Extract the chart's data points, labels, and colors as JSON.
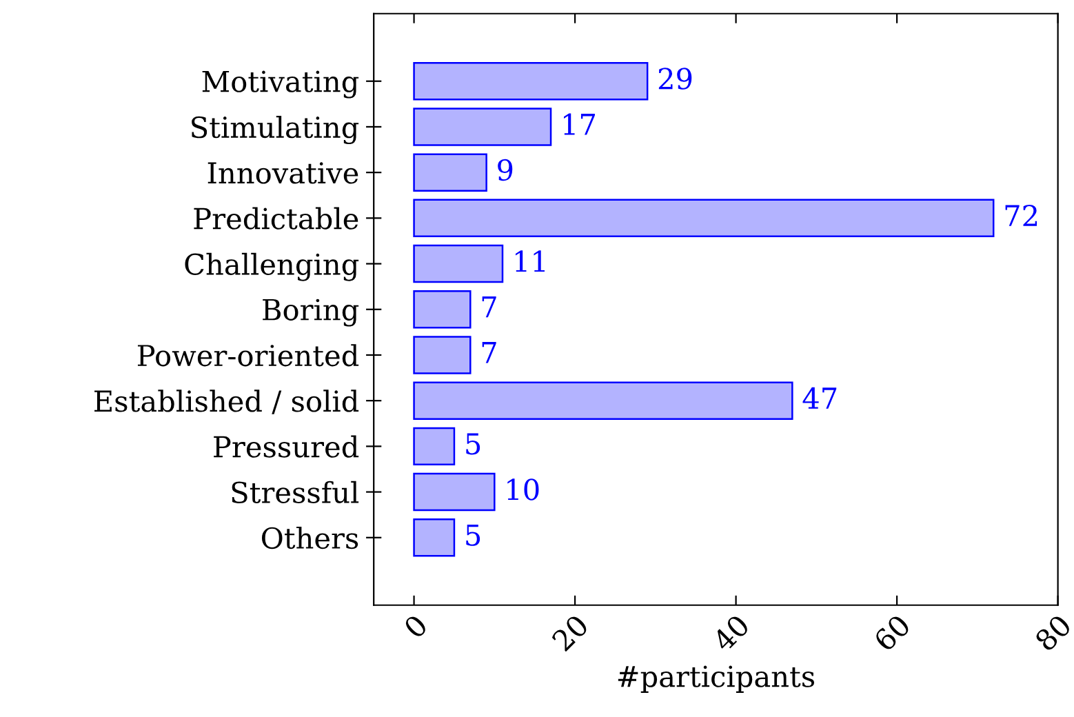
{
  "chart_data": {
    "type": "bar",
    "orientation": "horizontal",
    "xlabel": "#participants",
    "categories": [
      "Motivating",
      "Stimulating",
      "Innovative",
      "Predictable",
      "Challenging",
      "Boring",
      "Power-oriented",
      "Established / solid",
      "Pressured",
      "Stressful",
      "Others"
    ],
    "values": [
      29,
      17,
      9,
      72,
      11,
      7,
      7,
      47,
      5,
      10,
      5
    ],
    "color": "#b3b3ff",
    "xlim": [
      -5,
      80
    ],
    "xticks": [
      0,
      20,
      40,
      60,
      80
    ],
    "grid": false,
    "data_labels": true
  }
}
